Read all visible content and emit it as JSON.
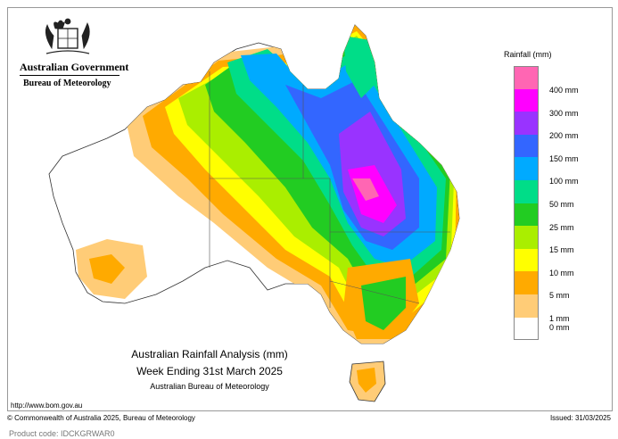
{
  "header": {
    "org_name": "Australian Government",
    "dept_name": "Bureau of Meteorology"
  },
  "legend": {
    "title": "Rainfall (mm)",
    "items": [
      {
        "label": "400 mm",
        "color": "#ff66b3"
      },
      {
        "label": "300 mm",
        "color": "#ff00ff"
      },
      {
        "label": "200 mm",
        "color": "#9933ff"
      },
      {
        "label": "150 mm",
        "color": "#3366ff"
      },
      {
        "label": "100 mm",
        "color": "#00aaff"
      },
      {
        "label": "50 mm",
        "color": "#00dd88"
      },
      {
        "label": "25 mm",
        "color": "#22cc22"
      },
      {
        "label": "15 mm",
        "color": "#aaee00"
      },
      {
        "label": "10 mm",
        "color": "#ffff00"
      },
      {
        "label": "5 mm",
        "color": "#ffaa00"
      },
      {
        "label": "1 mm",
        "color": "#ffcc77"
      },
      {
        "label": "0 mm",
        "color": "#ffffff"
      }
    ]
  },
  "caption": {
    "line1": "Australian Rainfall Analysis (mm)",
    "line2": "Week Ending 31st March 2025",
    "line3": "Australian Bureau of Meteorology"
  },
  "footer": {
    "url": "http://www.bom.gov.au",
    "copyright": "© Commonwealth of Australia 2025, Bureau of Meteorology",
    "issued": "Issued: 31/03/2025",
    "product_code": "Product code: IDCKGRWAR0"
  }
}
